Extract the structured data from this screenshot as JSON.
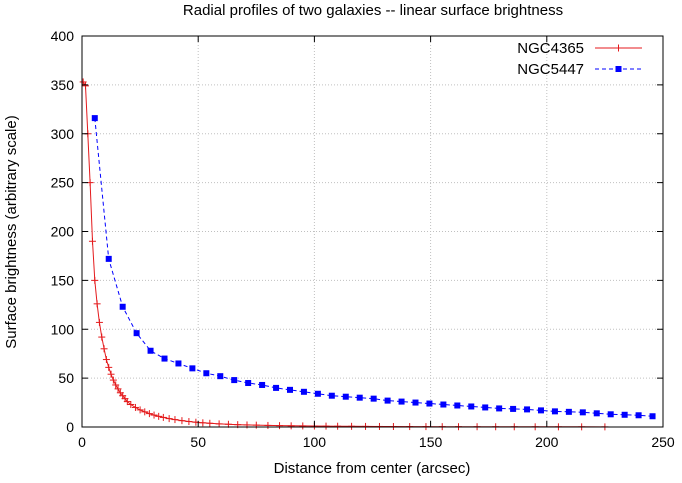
{
  "chart_data": {
    "type": "line",
    "title": "Radial profiles of two galaxies -- linear surface brightness",
    "xlabel": "Distance from center (arcsec)",
    "ylabel": "Surface brightness (arbitrary scale)",
    "xlim": [
      0,
      250
    ],
    "ylim": [
      0,
      400
    ],
    "xticks": [
      "0",
      "50",
      "100",
      "150",
      "200",
      "250"
    ],
    "yticks": [
      "0",
      "50",
      "100",
      "150",
      "200",
      "250",
      "300",
      "350",
      "400"
    ],
    "grid": true,
    "legend_position": "top-right",
    "series": [
      {
        "name": "NGC4365",
        "color": "#e41a1c",
        "line_style": "solid",
        "marker": "plus",
        "x": [
          0.5,
          1.5,
          2.5,
          3.5,
          4.5,
          5.5,
          6.5,
          7.5,
          8.5,
          9.5,
          10.5,
          11.5,
          12.5,
          13.5,
          14.5,
          15.5,
          16.5,
          17.5,
          18.5,
          19.5,
          21,
          23,
          25,
          27,
          29,
          31,
          33,
          35,
          37.5,
          40,
          43,
          46,
          49,
          52,
          55,
          59,
          63,
          67,
          71,
          75,
          80,
          85,
          90,
          95,
          100,
          105,
          110,
          116,
          122,
          128,
          134,
          141,
          148,
          155,
          162,
          170,
          178,
          186,
          195,
          205,
          215,
          225
        ],
        "y": [
          353,
          349,
          300,
          250,
          190,
          150,
          126,
          107,
          92,
          80,
          69,
          61,
          54,
          48,
          43,
          39,
          35,
          32,
          29,
          26,
          23,
          20,
          17.5,
          15.5,
          13.7,
          12.2,
          10.9,
          9.8,
          8.6,
          7.6,
          6.5,
          5.6,
          4.9,
          4.3,
          3.8,
          3.2,
          2.8,
          2.4,
          2.1,
          1.9,
          1.6,
          1.4,
          1.2,
          1.1,
          1.0,
          0.9,
          0.8,
          0.7,
          0.6,
          0.55,
          0.5,
          0.45,
          0.4,
          0.35,
          0.3,
          0.28,
          0.25,
          0.22,
          0.2,
          0.18,
          0.16,
          0.14
        ]
      },
      {
        "name": "NGC5447",
        "color": "#0000ff",
        "line_style": "dashed",
        "marker": "square",
        "x": [
          5.5,
          11.5,
          17.5,
          23.5,
          29.5,
          35.5,
          41.5,
          47.5,
          53.5,
          59.5,
          65.5,
          71.5,
          77.5,
          83.5,
          89.5,
          95.5,
          101.5,
          107.5,
          113.5,
          119.5,
          125.5,
          131.5,
          137.5,
          143.5,
          149.5,
          155.5,
          161.5,
          167.5,
          173.5,
          179.5,
          185.5,
          191.5,
          197.5,
          203.5,
          209.5,
          215.5,
          221.5,
          227.5,
          233.5,
          239.5,
          245.5
        ],
        "y": [
          316,
          172,
          123,
          96,
          78,
          70,
          65,
          60,
          55,
          52,
          48,
          45,
          43,
          40,
          38,
          36,
          34,
          32,
          31,
          30,
          29,
          27,
          26,
          25,
          24,
          23,
          22,
          21,
          20,
          19,
          18.5,
          18,
          17,
          16,
          15.5,
          15,
          14,
          13,
          12.5,
          12,
          11
        ]
      }
    ]
  }
}
